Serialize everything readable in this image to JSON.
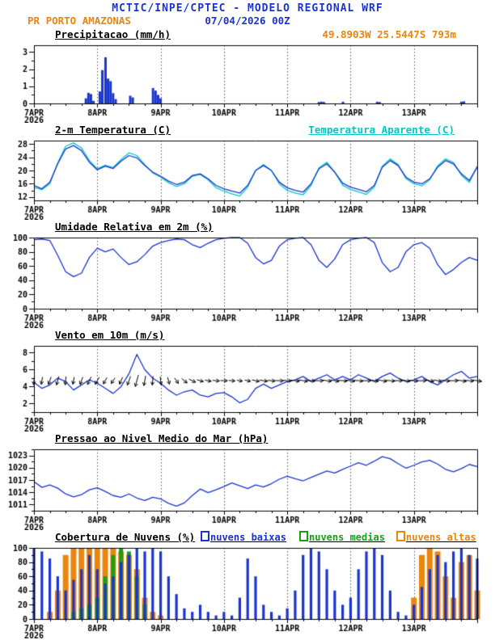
{
  "header": {
    "title": "MCTIC/INPE/CPTEC - MODELO REGIONAL WRF",
    "station": "PR PORTO AMAZONAS",
    "run": "07/04/2026 00Z",
    "location": "49.8903W 25.5447S 793m"
  },
  "colors": {
    "blue": "#1a35cf",
    "orange": "#e8860f",
    "cyan": "#00c8c8",
    "green": "#18a018",
    "black": "#000000"
  },
  "time": {
    "start": 7,
    "step": 0.125,
    "count": 57
  },
  "x_axis": {
    "start": 7,
    "end": 14,
    "ticks": [
      {
        "day": 7,
        "label": "7APR",
        "sub": "2026"
      },
      {
        "day": 8,
        "label": "8APR"
      },
      {
        "day": 9,
        "label": "9APR"
      },
      {
        "day": 10,
        "label": "10APR"
      },
      {
        "day": 11,
        "label": "11APR"
      },
      {
        "day": 12,
        "label": "12APR"
      },
      {
        "day": 13,
        "label": "13APR"
      }
    ]
  },
  "chart_data": [
    {
      "type": "bar",
      "id": "precipitation",
      "title": "Precipitacao (mm/h)",
      "ylim": [
        0,
        3.4
      ],
      "yticks": [
        0,
        1,
        2,
        3
      ],
      "y_minor_step": 0.5,
      "bar_color": "#1a35cf",
      "bars": [
        [
          7.82,
          0.3
        ],
        [
          7.86,
          0.62
        ],
        [
          7.9,
          0.55
        ],
        [
          7.94,
          0.15
        ],
        [
          8.04,
          0.7
        ],
        [
          8.08,
          1.95
        ],
        [
          8.13,
          2.7
        ],
        [
          8.17,
          1.45
        ],
        [
          8.21,
          1.3
        ],
        [
          8.25,
          0.6
        ],
        [
          8.29,
          0.25
        ],
        [
          8.52,
          0.45
        ],
        [
          8.56,
          0.35
        ],
        [
          8.88,
          0.9
        ],
        [
          8.92,
          0.75
        ],
        [
          8.96,
          0.5
        ],
        [
          9.0,
          0.3
        ],
        [
          11.5,
          0.08
        ],
        [
          11.54,
          0.1
        ],
        [
          11.58,
          0.08
        ],
        [
          11.88,
          0.1
        ],
        [
          12.42,
          0.1
        ],
        [
          12.46,
          0.08
        ],
        [
          13.75,
          0.1
        ],
        [
          13.79,
          0.12
        ]
      ]
    },
    {
      "type": "line",
      "id": "temperature",
      "title": "2-m Temperatura (C)",
      "title2": "Temperatura Aparente (C)",
      "ylim": [
        11,
        29
      ],
      "yticks": [
        12,
        16,
        20,
        24,
        28
      ],
      "y_minor_step": 2,
      "series": [
        {
          "name": "2-m Temperatura (C)",
          "color": "#1a35cf",
          "values": [
            15.5,
            14.5,
            16.5,
            22,
            26.5,
            27.5,
            26,
            22.5,
            20.2,
            21.3,
            20.6,
            22.8,
            24.5,
            23.8,
            21.5,
            19.5,
            18.3,
            16.8,
            15.8,
            16.5,
            18.5,
            19,
            17.5,
            15.5,
            14.5,
            13.8,
            13.2,
            15.5,
            20,
            21.5,
            20,
            16.5,
            14.8,
            14,
            13.5,
            16,
            20.5,
            22,
            19.5,
            16.2,
            15,
            14.3,
            13.6,
            15.5,
            21,
            23,
            21.5,
            18,
            16.5,
            16,
            17.5,
            21,
            23,
            22,
            19,
            17,
            21
          ]
        },
        {
          "name": "Temperatura Aparente (C)",
          "color": "#00c8c8",
          "values": [
            15,
            14.2,
            16,
            22.3,
            27.3,
            28.3,
            26.8,
            23,
            20.5,
            21.6,
            20.9,
            23.3,
            25.3,
            24.5,
            21.8,
            19.3,
            18,
            16.3,
            15.2,
            16,
            18.3,
            18.8,
            17.2,
            14.8,
            13.8,
            13,
            12.3,
            15,
            20,
            21.8,
            20,
            16,
            14,
            13.2,
            12.7,
            15.5,
            20.8,
            22.5,
            19.5,
            15.6,
            14.3,
            13.6,
            12.8,
            15,
            21.3,
            23.5,
            21.8,
            17.6,
            16,
            15.4,
            17.2,
            21.4,
            23.5,
            22.4,
            18.6,
            16.4,
            21.3
          ]
        }
      ]
    },
    {
      "type": "line",
      "id": "humidity",
      "title": "Umidade Relativa em 2m (%)",
      "ylim": [
        0,
        100
      ],
      "yticks": [
        0,
        20,
        40,
        60,
        80,
        100
      ],
      "y_minor_step": 10,
      "series": [
        {
          "name": "Umidade Relativa em 2m",
          "color": "#1a35cf",
          "values": [
            97,
            98,
            96,
            75,
            52,
            45,
            50,
            72,
            85,
            80,
            84,
            72,
            62,
            66,
            76,
            88,
            93,
            96,
            98,
            97,
            90,
            86,
            92,
            97,
            99,
            100,
            100,
            92,
            72,
            63,
            68,
            88,
            97,
            99,
            100,
            90,
            68,
            58,
            70,
            90,
            97,
            99,
            100,
            93,
            65,
            52,
            58,
            80,
            90,
            93,
            85,
            62,
            48,
            55,
            65,
            72,
            68
          ]
        }
      ]
    },
    {
      "type": "line",
      "id": "wind",
      "title": "Vento em 10m (m/s)",
      "ylim": [
        1,
        8.8
      ],
      "yticks": [
        2,
        4,
        6,
        8
      ],
      "y_minor_step": 1,
      "series": [
        {
          "name": "Vento em 10m",
          "color": "#1a35cf",
          "values": [
            4.5,
            3.8,
            4.2,
            5,
            4.6,
            3.6,
            4.2,
            4.8,
            4.4,
            3.8,
            3.2,
            4,
            5.5,
            7.8,
            6,
            5,
            4.4,
            3.6,
            3,
            3.4,
            3.6,
            3,
            2.8,
            3.2,
            3.3,
            2.8,
            2.1,
            2.5,
            3.8,
            4.3,
            3.8,
            4.2,
            4.6,
            4.8,
            5.2,
            4.6,
            5,
            5.4,
            4.8,
            5.2,
            4.8,
            5.4,
            5,
            4.6,
            5.2,
            5.6,
            5,
            4.6,
            4.8,
            5.2,
            4.6,
            4.2,
            4.8,
            5.4,
            5.8,
            5,
            5.2
          ]
        }
      ],
      "barbs": {
        "color": "#000000",
        "y": 4.7,
        "dirs_toward_deg": [
          185,
          190,
          200,
          195,
          185,
          190,
          200,
          205,
          210,
          210,
          215,
          205,
          200,
          195,
          190,
          185,
          175,
          165,
          145,
          130,
          115,
          105,
          100,
          95,
          92,
          95,
          98,
          100,
          102,
          98,
          95,
          92,
          95,
          98,
          100,
          95,
          90,
          98,
          100,
          95,
          98,
          95,
          90,
          98,
          100,
          95,
          90,
          98,
          95,
          90,
          98,
          100,
          95,
          90,
          98,
          95,
          98
        ]
      }
    },
    {
      "type": "line",
      "id": "pressure",
      "title": "Pressao ao Nivel Medio do Mar (hPa)",
      "ylim": [
        1009.5,
        1024.5
      ],
      "yticks": [
        1011,
        1014,
        1017,
        1020,
        1023
      ],
      "y_minor_step": 1.5,
      "series": [
        {
          "name": "Pressao ao Nivel Medio do Mar",
          "color": "#1a35cf",
          "values": [
            1016.6,
            1015.2,
            1015.8,
            1015,
            1013.6,
            1012.9,
            1013.4,
            1014.6,
            1015.1,
            1014.2,
            1013.2,
            1012.8,
            1013.6,
            1012.6,
            1012,
            1012.8,
            1012.4,
            1011.3,
            1010.6,
            1011.4,
            1013.2,
            1014.8,
            1013.9,
            1014.6,
            1015.4,
            1016.3,
            1015.6,
            1014.9,
            1015.8,
            1015.3,
            1016.1,
            1017.2,
            1017.9,
            1017.3,
            1016.8,
            1017.6,
            1018.4,
            1019.2,
            1018.7,
            1019.6,
            1020.4,
            1021.2,
            1020.6,
            1021.6,
            1022.7,
            1022.2,
            1021,
            1019.9,
            1020.6,
            1021.4,
            1021.8,
            1020.9,
            1019.6,
            1019,
            1019.8,
            1020.8,
            1020.3
          ]
        }
      ]
    },
    {
      "type": "bar-multi",
      "id": "clouds",
      "title": "Cobertura de Nuvens (%)",
      "ylim": [
        0,
        100
      ],
      "yticks": [
        0,
        20,
        40,
        60,
        80,
        100
      ],
      "y_minor_step": 10,
      "legend": [
        {
          "label": "nuvens baixas",
          "color": "#1a35cf"
        },
        {
          "label": "nuvens medias",
          "color": "#18a018"
        },
        {
          "label": "nuvens altas",
          "color": "#e8860f"
        }
      ],
      "series": [
        {
          "name": "nuvens baixas",
          "color": "#1a35cf",
          "values": [
            100,
            95,
            85,
            60,
            40,
            55,
            70,
            90,
            70,
            50,
            60,
            80,
            90,
            100,
            95,
            100,
            95,
            60,
            35,
            15,
            10,
            20,
            10,
            5,
            10,
            5,
            30,
            85,
            60,
            20,
            10,
            5,
            15,
            40,
            90,
            100,
            95,
            70,
            40,
            20,
            30,
            70,
            95,
            100,
            90,
            40,
            10,
            5,
            20,
            45,
            70,
            90,
            80,
            95,
            100,
            90,
            85
          ]
        },
        {
          "name": "nuvens medias",
          "color": "#18a018",
          "values": [
            0,
            0,
            0,
            0,
            0,
            10,
            15,
            20,
            30,
            60,
            90,
            100,
            95,
            60,
            20,
            0,
            0,
            0,
            0,
            0,
            0,
            0,
            0,
            0,
            0,
            0,
            0,
            0,
            0,
            0,
            0,
            0,
            0,
            0,
            0,
            0,
            0,
            0,
            0,
            0,
            0,
            0,
            0,
            0,
            0,
            0,
            0,
            0,
            0,
            0,
            0,
            0,
            0,
            0,
            0,
            0,
            0
          ]
        },
        {
          "name": "nuvens altas",
          "color": "#e8860f",
          "values": [
            0,
            0,
            10,
            40,
            90,
            100,
            100,
            100,
            100,
            100,
            100,
            95,
            90,
            70,
            30,
            10,
            5,
            0,
            0,
            0,
            0,
            0,
            0,
            0,
            0,
            0,
            0,
            0,
            0,
            0,
            0,
            0,
            0,
            0,
            0,
            0,
            0,
            0,
            0,
            0,
            0,
            0,
            0,
            0,
            0,
            0,
            0,
            0,
            30,
            90,
            100,
            95,
            60,
            30,
            80,
            90,
            40
          ]
        }
      ]
    }
  ]
}
